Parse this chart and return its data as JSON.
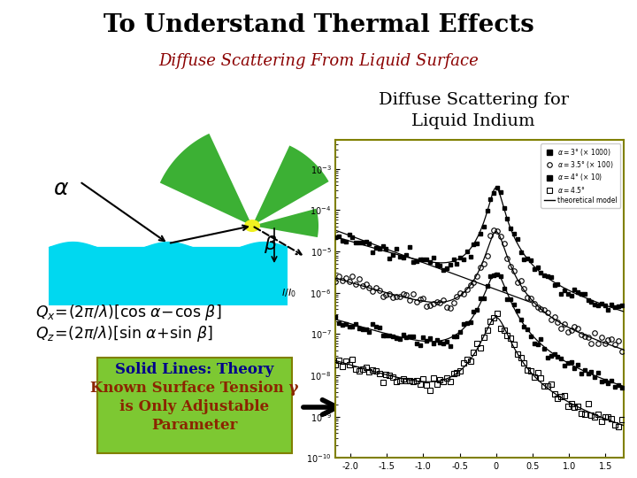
{
  "title": "To Understand Thermal Effects",
  "subtitle": "Diffuse Scattering From Liquid Surface",
  "right_title": "Diffuse Scattering for\nLiquid Indium",
  "header_bg": "#c8e8f0",
  "slide_bg": "#ffffff",
  "title_color": "#000000",
  "subtitle_color": "#8b0000",
  "right_title_color": "#000000",
  "box_bg": "#7dc832",
  "box_border": "#808000",
  "box_text1": "Solid Lines: Theory",
  "box_text2": "Known Surface Tension γ",
  "box_text3": "is Only Adjustable",
  "box_text4": "Parameter",
  "box_text1_color": "#00008b",
  "box_text234_color": "#8b2500",
  "plot_border_color": "#808000",
  "alpha_label": "α",
  "beta_label": "β",
  "liquid_color": "#00d8f0",
  "green_shape_color": "#3cb034"
}
